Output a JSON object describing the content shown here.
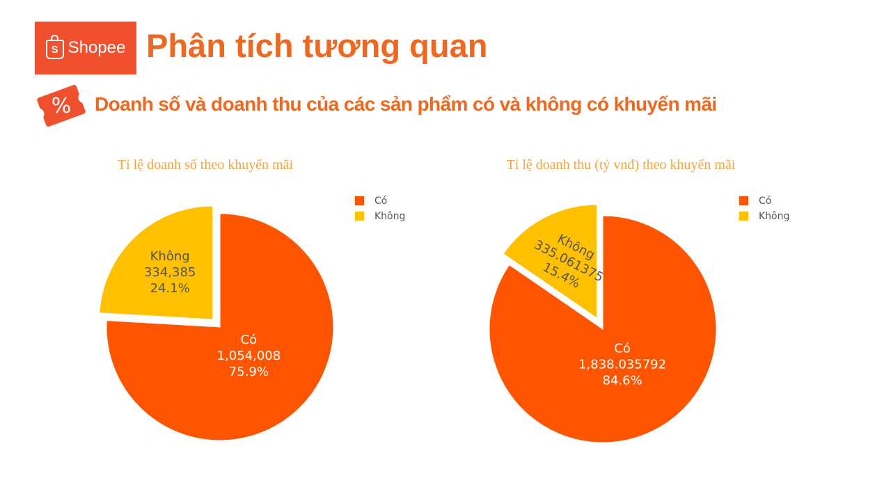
{
  "header": {
    "logo_text": "Shopee",
    "logo_letter": "S",
    "title": "Phân tích tương quan"
  },
  "section": {
    "tag_symbol": "%",
    "subtitle": "Doanh số và doanh thu của các sản phẩm có và không có khuyến mãi"
  },
  "colors": {
    "brand": "#f0502e",
    "accent": "#f06820",
    "co": "#ff5500",
    "khong": "#ffc000"
  },
  "chart_data": [
    {
      "type": "pie",
      "title": "Tỉ lệ doanh số theo khuyến mãi",
      "labels": [
        "Có",
        "Không"
      ],
      "values": [
        1054008,
        334385
      ],
      "value_text": [
        "1,054,008",
        "334,385"
      ],
      "percent_text": [
        "75.9%",
        "24.1%"
      ],
      "pulled": [
        "Không"
      ],
      "legend": [
        "Có",
        "Không"
      ],
      "legend_position": "top-right"
    },
    {
      "type": "pie",
      "title": "Tỉ lệ doanh thu (tỷ vnđ) theo khuyến mãi",
      "labels": [
        "Có",
        "Không"
      ],
      "values": [
        1838.035792,
        335.061375
      ],
      "value_text": [
        "1,838.035792",
        "335.061375"
      ],
      "percent_text": [
        "84.6%",
        "15.4%"
      ],
      "pulled": [
        "Không"
      ],
      "legend": [
        "Có",
        "Không"
      ],
      "legend_position": "top-right"
    }
  ]
}
